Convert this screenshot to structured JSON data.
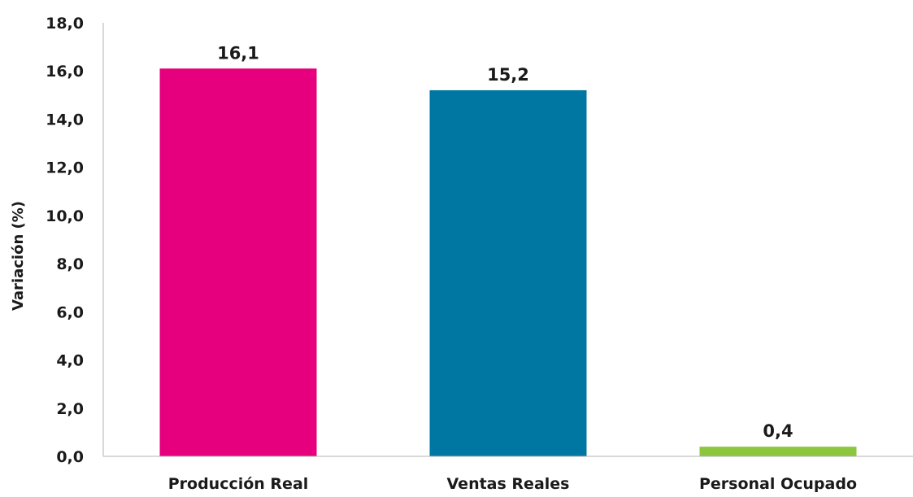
{
  "chart_data": {
    "type": "bar",
    "categories": [
      "Producción Real",
      "Ventas Reales",
      "Personal Ocupado"
    ],
    "values": [
      16.1,
      15.2,
      0.4
    ],
    "data_labels": [
      "16,1",
      "15,2",
      "0,4"
    ],
    "colors": [
      "#e6007e",
      "#0077a2",
      "#8cc63f"
    ],
    "title": "",
    "xlabel": "",
    "ylabel": "Variación (%)",
    "ylim": [
      0,
      18
    ],
    "yticks": [
      0,
      2,
      4,
      6,
      8,
      10,
      12,
      14,
      16,
      18
    ],
    "ytick_labels": [
      "0,0",
      "2,0",
      "4,0",
      "6,0",
      "8,0",
      "10,0",
      "12,0",
      "14,0",
      "16,0",
      "18,0"
    ],
    "grid": false,
    "legend": "none"
  }
}
